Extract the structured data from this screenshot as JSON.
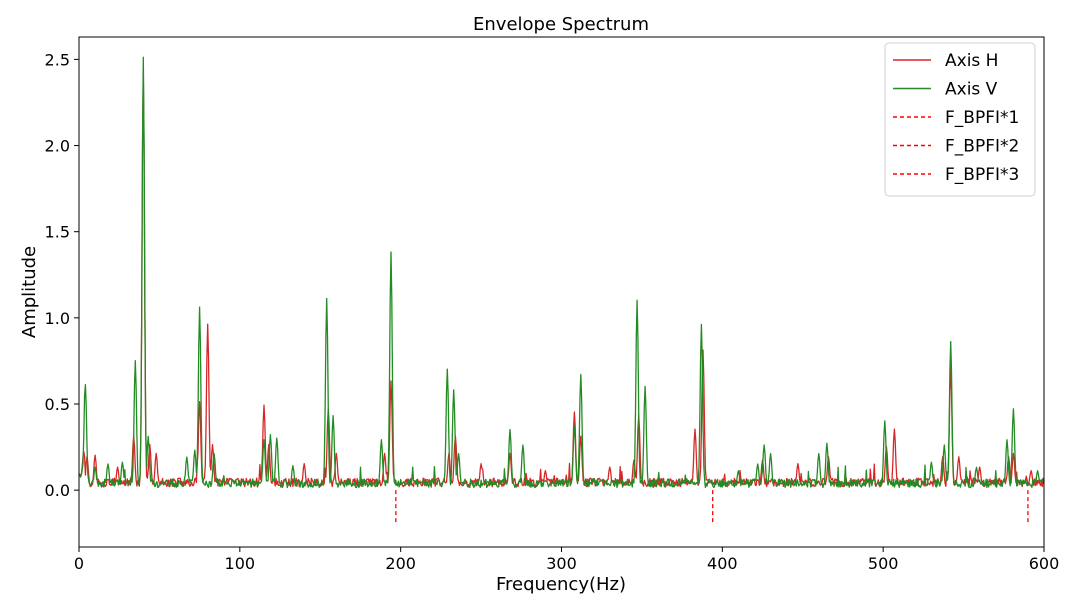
{
  "chart_data": {
    "type": "line",
    "title": "Envelope Spectrum",
    "xlabel": "Frequency(Hz)",
    "ylabel": "Amplitude",
    "xlim": [
      0,
      600
    ],
    "ylim": [
      -0.33,
      2.63
    ],
    "xticks": [
      0,
      100,
      200,
      300,
      400,
      500,
      600
    ],
    "yticks": [
      0.0,
      0.5,
      1.0,
      1.5,
      2.0,
      2.5
    ],
    "xtick_labels": [
      "0",
      "100",
      "200",
      "300",
      "400",
      "500",
      "600"
    ],
    "ytick_labels": [
      "0.0",
      "0.5",
      "1.0",
      "1.5",
      "2.0",
      "2.5"
    ],
    "grid": false,
    "legend_position": "top-right",
    "series": [
      {
        "name": "Axis H",
        "color": "#d62728",
        "style": "solid",
        "baseline": 0.045,
        "peaks": [
          [
            3,
            0.15
          ],
          [
            5,
            0.18
          ],
          [
            10,
            0.19
          ],
          [
            24,
            0.12
          ],
          [
            34,
            0.3
          ],
          [
            40,
            2.42
          ],
          [
            44,
            0.25
          ],
          [
            48,
            0.2
          ],
          [
            75,
            0.5
          ],
          [
            80,
            0.95
          ],
          [
            83,
            0.25
          ],
          [
            115,
            0.48
          ],
          [
            118,
            0.25
          ],
          [
            140,
            0.14
          ],
          [
            155,
            0.46
          ],
          [
            160,
            0.2
          ],
          [
            190,
            0.2
          ],
          [
            194,
            0.62
          ],
          [
            230,
            0.2
          ],
          [
            234,
            0.3
          ],
          [
            250,
            0.14
          ],
          [
            268,
            0.2
          ],
          [
            290,
            0.1
          ],
          [
            308,
            0.44
          ],
          [
            312,
            0.3
          ],
          [
            330,
            0.12
          ],
          [
            345,
            0.16
          ],
          [
            348,
            0.42
          ],
          [
            383,
            0.34
          ],
          [
            388,
            0.8
          ],
          [
            425,
            0.16
          ],
          [
            447,
            0.14
          ],
          [
            466,
            0.18
          ],
          [
            502,
            0.24
          ],
          [
            507,
            0.34
          ],
          [
            537,
            0.18
          ],
          [
            542,
            0.7
          ],
          [
            547,
            0.18
          ],
          [
            560,
            0.12
          ],
          [
            578,
            0.18
          ],
          [
            581,
            0.2
          ],
          [
            592,
            0.1
          ]
        ]
      },
      {
        "name": "Axis V",
        "color": "#238b23",
        "style": "solid",
        "baseline": 0.04,
        "peaks": [
          [
            4,
            0.6
          ],
          [
            10,
            0.12
          ],
          [
            18,
            0.14
          ],
          [
            27,
            0.15
          ],
          [
            35,
            0.74
          ],
          [
            40,
            2.5
          ],
          [
            43,
            0.3
          ],
          [
            67,
            0.18
          ],
          [
            72,
            0.22
          ],
          [
            75,
            1.05
          ],
          [
            84,
            0.2
          ],
          [
            115,
            0.28
          ],
          [
            119,
            0.31
          ],
          [
            123,
            0.29
          ],
          [
            133,
            0.13
          ],
          [
            154,
            1.1
          ],
          [
            158,
            0.42
          ],
          [
            188,
            0.28
          ],
          [
            194,
            1.37
          ],
          [
            229,
            0.69
          ],
          [
            233,
            0.57
          ],
          [
            236,
            0.2
          ],
          [
            268,
            0.34
          ],
          [
            276,
            0.25
          ],
          [
            308,
            0.36
          ],
          [
            312,
            0.66
          ],
          [
            347,
            1.09
          ],
          [
            352,
            0.59
          ],
          [
            387,
            0.95
          ],
          [
            410,
            0.1
          ],
          [
            422,
            0.14
          ],
          [
            426,
            0.25
          ],
          [
            430,
            0.2
          ],
          [
            460,
            0.2
          ],
          [
            465,
            0.26
          ],
          [
            501,
            0.39
          ],
          [
            530,
            0.15
          ],
          [
            538,
            0.25
          ],
          [
            542,
            0.85
          ],
          [
            558,
            0.12
          ],
          [
            577,
            0.28
          ],
          [
            581,
            0.46
          ],
          [
            596,
            0.1
          ]
        ]
      },
      {
        "name": "F_BPFI*1",
        "color": "#ff0000",
        "style": "dashed",
        "x": [
          197,
          197
        ],
        "y": [
          0.0,
          -0.2
        ]
      },
      {
        "name": "F_BPFI*2",
        "color": "#ff0000",
        "style": "dashed",
        "x": [
          394,
          394
        ],
        "y": [
          0.0,
          -0.2
        ]
      },
      {
        "name": "F_BPFI*3",
        "color": "#ff0000",
        "style": "dashed",
        "x": [
          590,
          590
        ],
        "y": [
          0.0,
          -0.2
        ]
      }
    ]
  }
}
